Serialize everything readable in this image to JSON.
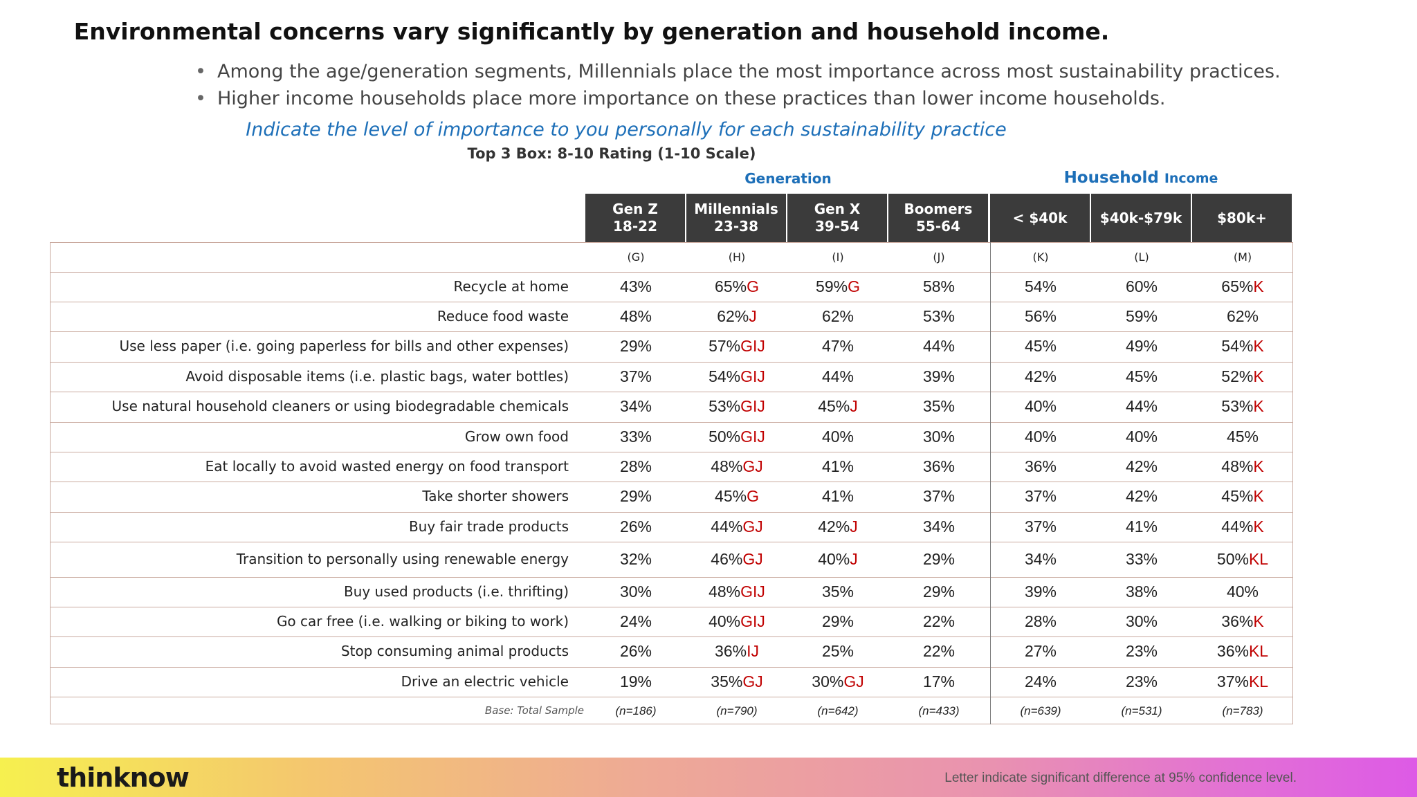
{
  "title": "Environmental concerns vary significantly by generation and household income.",
  "bullets": [
    "Among the age/generation segments, Millennials place the most importance across most sustainability practices.",
    "Higher income households place more importance on these practices than lower income households."
  ],
  "question": "Indicate the level of importance to you personally for each sustainability practice",
  "subtitle": "Top 3 Box: 8-10 Rating (1-10 Scale)",
  "groups": {
    "generation": "Generation",
    "household_big": "Household",
    "household_small": "Income"
  },
  "chart_data": {
    "type": "table",
    "columns": [
      {
        "line1": "Gen Z",
        "line2": "18-22",
        "letter": "(G)",
        "base": "(n=186)"
      },
      {
        "line1": "Millennials",
        "line2": "23-38",
        "letter": "(H)",
        "base": "(n=790)"
      },
      {
        "line1": "Gen X",
        "line2": "39-54",
        "letter": "(I)",
        "base": "(n=642)"
      },
      {
        "line1": "Boomers",
        "line2": "55-64",
        "letter": "(J)",
        "base": "(n=433)"
      },
      {
        "line1": "< $40k",
        "line2": "",
        "letter": "(K)",
        "base": "(n=639)"
      },
      {
        "line1": "$40k-$79k",
        "line2": "",
        "letter": "(L)",
        "base": "(n=531)"
      },
      {
        "line1": "$80k+",
        "line2": "",
        "letter": "(M)",
        "base": "(n=783)"
      }
    ],
    "rows": [
      {
        "label": "Recycle at home",
        "cells": [
          [
            "43%",
            ""
          ],
          [
            "65%",
            "G"
          ],
          [
            "59%",
            "G"
          ],
          [
            "58%",
            ""
          ],
          [
            "54%",
            ""
          ],
          [
            "60%",
            ""
          ],
          [
            "65%",
            "K"
          ]
        ]
      },
      {
        "label": "Reduce food waste",
        "cells": [
          [
            "48%",
            ""
          ],
          [
            "62%",
            "J"
          ],
          [
            "62%",
            ""
          ],
          [
            "53%",
            ""
          ],
          [
            "56%",
            ""
          ],
          [
            "59%",
            ""
          ],
          [
            "62%",
            ""
          ]
        ]
      },
      {
        "label": "Use less paper (i.e. going paperless for bills and other expenses)",
        "cells": [
          [
            "29%",
            ""
          ],
          [
            "57%",
            "GIJ"
          ],
          [
            "47%",
            ""
          ],
          [
            "44%",
            ""
          ],
          [
            "45%",
            ""
          ],
          [
            "49%",
            ""
          ],
          [
            "54%",
            "K"
          ]
        ]
      },
      {
        "label": "Avoid disposable items (i.e. plastic bags, water bottles)",
        "cells": [
          [
            "37%",
            ""
          ],
          [
            "54%",
            "GIJ"
          ],
          [
            "44%",
            ""
          ],
          [
            "39%",
            ""
          ],
          [
            "42%",
            ""
          ],
          [
            "45%",
            ""
          ],
          [
            "52%",
            "K"
          ]
        ]
      },
      {
        "label": "Use natural household cleaners or using biodegradable chemicals",
        "cells": [
          [
            "34%",
            ""
          ],
          [
            "53%",
            "GIJ"
          ],
          [
            "45%",
            "J"
          ],
          [
            "35%",
            ""
          ],
          [
            "40%",
            ""
          ],
          [
            "44%",
            ""
          ],
          [
            "53%",
            "K"
          ]
        ]
      },
      {
        "label": "Grow own food",
        "cells": [
          [
            "33%",
            ""
          ],
          [
            "50%",
            "GIJ"
          ],
          [
            "40%",
            ""
          ],
          [
            "30%",
            ""
          ],
          [
            "40%",
            ""
          ],
          [
            "40%",
            ""
          ],
          [
            "45%",
            ""
          ]
        ]
      },
      {
        "label": "Eat locally to avoid wasted energy on food transport",
        "cells": [
          [
            "28%",
            ""
          ],
          [
            "48%",
            "GJ"
          ],
          [
            "41%",
            ""
          ],
          [
            "36%",
            ""
          ],
          [
            "36%",
            ""
          ],
          [
            "42%",
            ""
          ],
          [
            "48%",
            "K"
          ]
        ]
      },
      {
        "label": "Take shorter showers",
        "cells": [
          [
            "29%",
            ""
          ],
          [
            "45%",
            "G"
          ],
          [
            "41%",
            ""
          ],
          [
            "37%",
            ""
          ],
          [
            "37%",
            ""
          ],
          [
            "42%",
            ""
          ],
          [
            "45%",
            "K"
          ]
        ]
      },
      {
        "label": "Buy fair trade products",
        "cells": [
          [
            "26%",
            ""
          ],
          [
            "44%",
            "GJ"
          ],
          [
            "42%",
            "J"
          ],
          [
            "34%",
            ""
          ],
          [
            "37%",
            ""
          ],
          [
            "41%",
            ""
          ],
          [
            "44%",
            "K"
          ]
        ]
      },
      {
        "label": "Transition to personally using renewable energy",
        "cells": [
          [
            "32%",
            ""
          ],
          [
            "46%",
            "GJ"
          ],
          [
            "40%",
            "J"
          ],
          [
            "29%",
            ""
          ],
          [
            "34%",
            ""
          ],
          [
            "33%",
            ""
          ],
          [
            "50%",
            "KL"
          ]
        ]
      },
      {
        "label": "Buy used products (i.e. thrifting)",
        "cells": [
          [
            "30%",
            ""
          ],
          [
            "48%",
            "GIJ"
          ],
          [
            "35%",
            ""
          ],
          [
            "29%",
            ""
          ],
          [
            "39%",
            ""
          ],
          [
            "38%",
            ""
          ],
          [
            "40%",
            ""
          ]
        ]
      },
      {
        "label": "Go car free (i.e. walking or biking to work)",
        "cells": [
          [
            "24%",
            ""
          ],
          [
            "40%",
            "GIJ"
          ],
          [
            "29%",
            ""
          ],
          [
            "22%",
            ""
          ],
          [
            "28%",
            ""
          ],
          [
            "30%",
            ""
          ],
          [
            "36%",
            "K"
          ]
        ]
      },
      {
        "label": "Stop consuming animal products",
        "cells": [
          [
            "26%",
            ""
          ],
          [
            "36%",
            "IJ"
          ],
          [
            "25%",
            ""
          ],
          [
            "22%",
            ""
          ],
          [
            "27%",
            ""
          ],
          [
            "23%",
            ""
          ],
          [
            "36%",
            "KL"
          ]
        ]
      },
      {
        "label": "Drive an electric vehicle",
        "cells": [
          [
            "19%",
            ""
          ],
          [
            "35%",
            "GJ"
          ],
          [
            "30%",
            "GJ"
          ],
          [
            "17%",
            ""
          ],
          [
            "24%",
            ""
          ],
          [
            "23%",
            ""
          ],
          [
            "37%",
            "KL"
          ]
        ]
      }
    ],
    "base_label": "Base: Total Sample",
    "colors": {
      "header_bg": "#3b3b3b",
      "significance": "#c00000",
      "accent": "#1d6fb8"
    }
  },
  "footer": {
    "logo": "thinknow",
    "note": "Letter indicate significant difference at 95% confidence level."
  }
}
